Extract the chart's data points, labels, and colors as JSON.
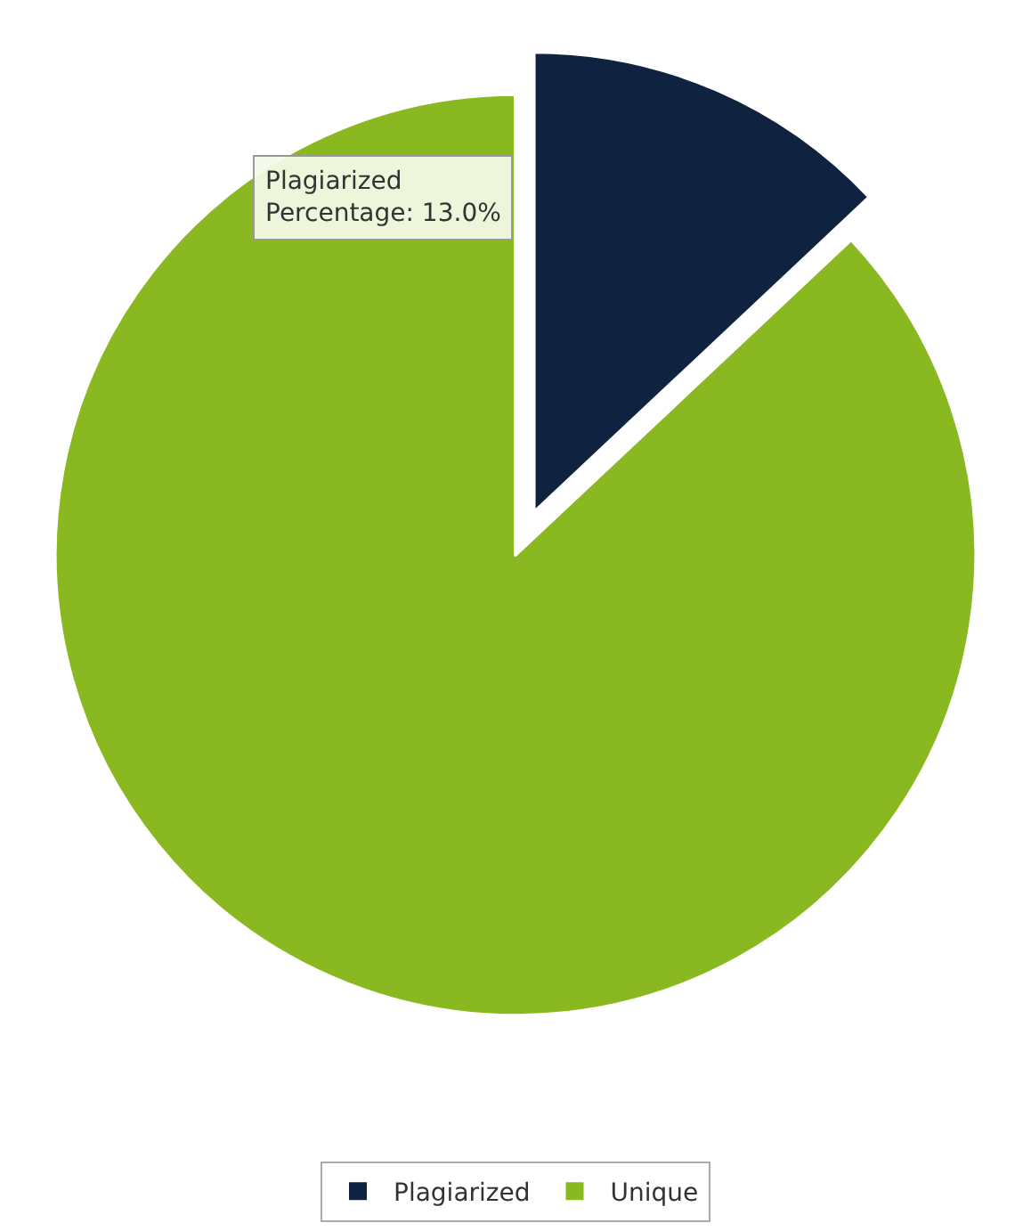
{
  "chart_data": {
    "type": "pie",
    "categories": [
      "Plagiarized",
      "Unique"
    ],
    "values": [
      13,
      87
    ],
    "colors": [
      "#0f2340",
      "#8ab820"
    ],
    "legend": "bottom",
    "annotations": [
      "Plagiarized\nPercentage: 13.0%"
    ]
  }
}
